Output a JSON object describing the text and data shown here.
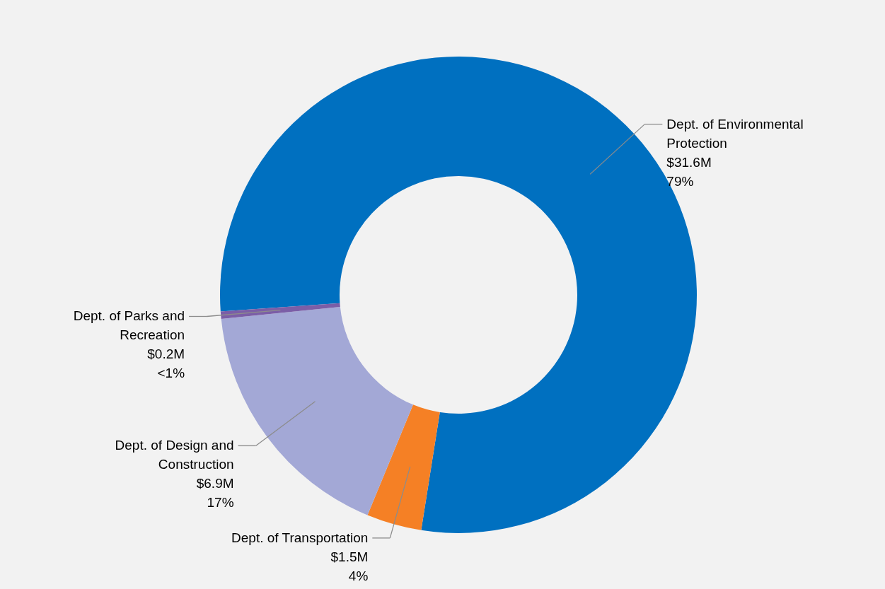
{
  "chart_data": {
    "type": "donut",
    "categories": [
      "Dept. of Environmental Protection",
      "Dept. of Transportation",
      "Dept. of Design and Construction",
      "Dept. of Parks and Recreation"
    ],
    "values": [
      31.6,
      1.5,
      6.9,
      0.2
    ],
    "colors": [
      "#0070c0",
      "#f58025",
      "#a3a8d6",
      "#7b5ea7"
    ],
    "value_labels": [
      "$31.6M",
      "$1.5M",
      "$6.9M",
      "$0.2M"
    ],
    "annotations": [
      "79%",
      "4%",
      "17%",
      "<1%"
    ]
  }
}
